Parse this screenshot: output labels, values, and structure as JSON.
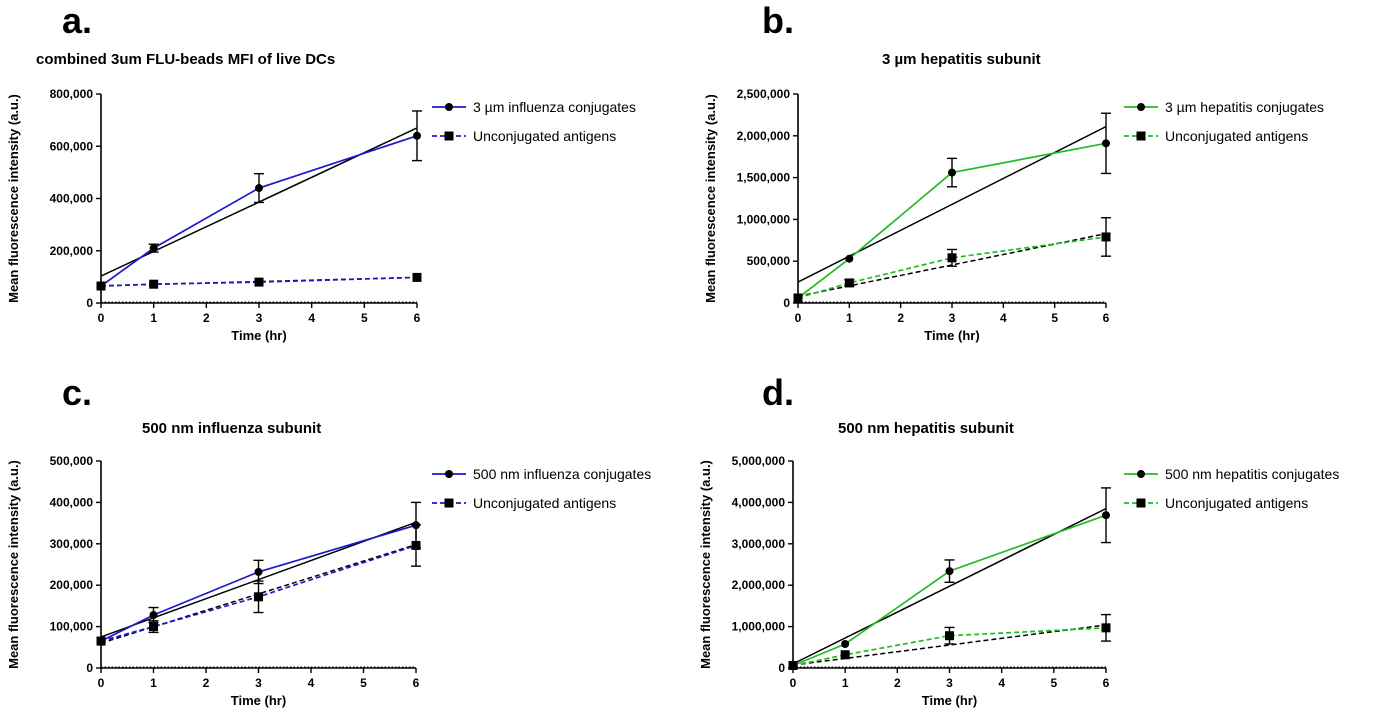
{
  "chart_data": [
    {
      "panel_label": "a.",
      "type": "line",
      "title": "combined 3um FLU-beads MFI of live DCs",
      "xlabel": "Time (hr)",
      "ylabel": "Mean fluorescence intensity (a.u.)",
      "xlim": [
        0,
        6
      ],
      "ylim": [
        0,
        800000
      ],
      "xticks": [
        "0",
        "1",
        "2",
        "3",
        "4",
        "5",
        "6"
      ],
      "yticks": [
        "0",
        "200,000",
        "400,000",
        "600,000",
        "800,000"
      ],
      "legend_position": "right",
      "grid": false,
      "series": [
        {
          "name": "3 µm influenza conjugates",
          "marker": "circle",
          "style": "solid",
          "color": "#1a1acc",
          "x": [
            0,
            1,
            3,
            6
          ],
          "y": [
            65000,
            210000,
            440000,
            640000
          ],
          "err": [
            5000,
            15000,
            55000,
            95000
          ]
        },
        {
          "name": "Unconjugated antigens",
          "marker": "square",
          "style": "dashed",
          "color": "#1a1acc",
          "x": [
            0,
            1,
            3,
            6
          ],
          "y": [
            65000,
            72000,
            80000,
            98000
          ],
          "err": [
            3000,
            4000,
            5000,
            6000
          ]
        }
      ],
      "fits": [
        {
          "x": [
            0,
            6
          ],
          "y": [
            103000,
            670000
          ],
          "style": "solid",
          "color": "#000000"
        },
        {
          "x": [
            0,
            6
          ],
          "y": [
            66000,
            98000
          ],
          "style": "dashed",
          "color": "#000000"
        }
      ]
    },
    {
      "panel_label": "b.",
      "type": "line",
      "title": "3 µm hepatitis subunit",
      "xlabel": "Time (hr)",
      "ylabel": "Mean fluorescence intensity (a.u.)",
      "xlim": [
        0,
        6
      ],
      "ylim": [
        0,
        2500000
      ],
      "xticks": [
        "0",
        "1",
        "2",
        "3",
        "4",
        "5",
        "6"
      ],
      "yticks": [
        "0",
        "500,000",
        "1,000,000",
        "1,500,000",
        "2,000,000",
        "2,500,000"
      ],
      "legend_position": "right",
      "grid": false,
      "series": [
        {
          "name": "3 µm hepatitis conjugates",
          "marker": "circle",
          "style": "solid",
          "color": "#22bb22",
          "x": [
            0,
            1,
            3,
            6
          ],
          "y": [
            60000,
            530000,
            1560000,
            1910000
          ],
          "err": [
            10000,
            20000,
            170000,
            360000
          ]
        },
        {
          "name": "Unconjugated antigens",
          "marker": "square",
          "style": "dashed",
          "color": "#22bb22",
          "x": [
            0,
            1,
            3,
            6
          ],
          "y": [
            60000,
            240000,
            540000,
            790000
          ],
          "err": [
            10000,
            40000,
            100000,
            230000
          ]
        }
      ],
      "fits": [
        {
          "x": [
            0,
            6
          ],
          "y": [
            250000,
            2110000
          ],
          "style": "solid",
          "color": "#000000"
        },
        {
          "x": [
            0,
            6
          ],
          "y": [
            80000,
            830000
          ],
          "style": "dashed",
          "color": "#000000"
        }
      ]
    },
    {
      "panel_label": "c.",
      "type": "line",
      "title": "500 nm influenza subunit",
      "xlabel": "Time (hr)",
      "ylabel": "Mean fluorescence intensity (a.u.)",
      "xlim": [
        0,
        6
      ],
      "ylim": [
        0,
        500000
      ],
      "xticks": [
        "0",
        "1",
        "2",
        "3",
        "4",
        "5",
        "6"
      ],
      "yticks": [
        "0",
        "100,000",
        "200,000",
        "300,000",
        "400,000",
        "500,000"
      ],
      "legend_position": "right",
      "grid": false,
      "series": [
        {
          "name": "500 nm influenza conjugates",
          "marker": "circle",
          "style": "solid",
          "color": "#1a1acc",
          "x": [
            0,
            1,
            3,
            6
          ],
          "y": [
            65000,
            128000,
            232000,
            345000
          ],
          "err": [
            5000,
            18000,
            28000,
            55000
          ]
        },
        {
          "name": "Unconjugated antigens",
          "marker": "square",
          "style": "dashed",
          "color": "#1a1acc",
          "x": [
            0,
            1,
            3,
            6
          ],
          "y": [
            65000,
            100000,
            172000,
            296000
          ],
          "err": [
            5000,
            14000,
            38000,
            50000
          ]
        }
      ],
      "fits": [
        {
          "x": [
            0,
            6
          ],
          "y": [
            75000,
            352000
          ],
          "style": "solid",
          "color": "#000000"
        },
        {
          "x": [
            0,
            6
          ],
          "y": [
            60000,
            298000
          ],
          "style": "dashed",
          "color": "#000000"
        }
      ]
    },
    {
      "panel_label": "d.",
      "type": "line",
      "title": "500 nm hepatitis subunit",
      "xlabel": "Time (hr)",
      "ylabel": "Mean fluorescence intensity (a.u.)",
      "xlim": [
        0,
        6
      ],
      "ylim": [
        0,
        5000000
      ],
      "xticks": [
        "0",
        "1",
        "2",
        "3",
        "4",
        "5",
        "6"
      ],
      "yticks": [
        "0",
        "1,000,000",
        "2,000,000",
        "3,000,000",
        "4,000,000",
        "5,000,000"
      ],
      "legend_position": "right",
      "grid": false,
      "series": [
        {
          "name": "500 nm hepatitis conjugates",
          "marker": "circle",
          "style": "solid",
          "color": "#22bb22",
          "x": [
            0,
            1,
            3,
            6
          ],
          "y": [
            60000,
            580000,
            2340000,
            3690000
          ],
          "err": [
            10000,
            30000,
            270000,
            660000
          ]
        },
        {
          "name": "Unconjugated antigens",
          "marker": "square",
          "style": "dashed",
          "color": "#22bb22",
          "x": [
            0,
            1,
            3,
            6
          ],
          "y": [
            60000,
            320000,
            780000,
            970000
          ],
          "err": [
            10000,
            40000,
            200000,
            320000
          ]
        }
      ],
      "fits": [
        {
          "x": [
            0,
            6
          ],
          "y": [
            100000,
            3850000
          ],
          "style": "solid",
          "color": "#000000"
        },
        {
          "x": [
            0,
            6
          ],
          "y": [
            70000,
            1040000
          ],
          "style": "dashed",
          "color": "#000000"
        }
      ]
    }
  ]
}
